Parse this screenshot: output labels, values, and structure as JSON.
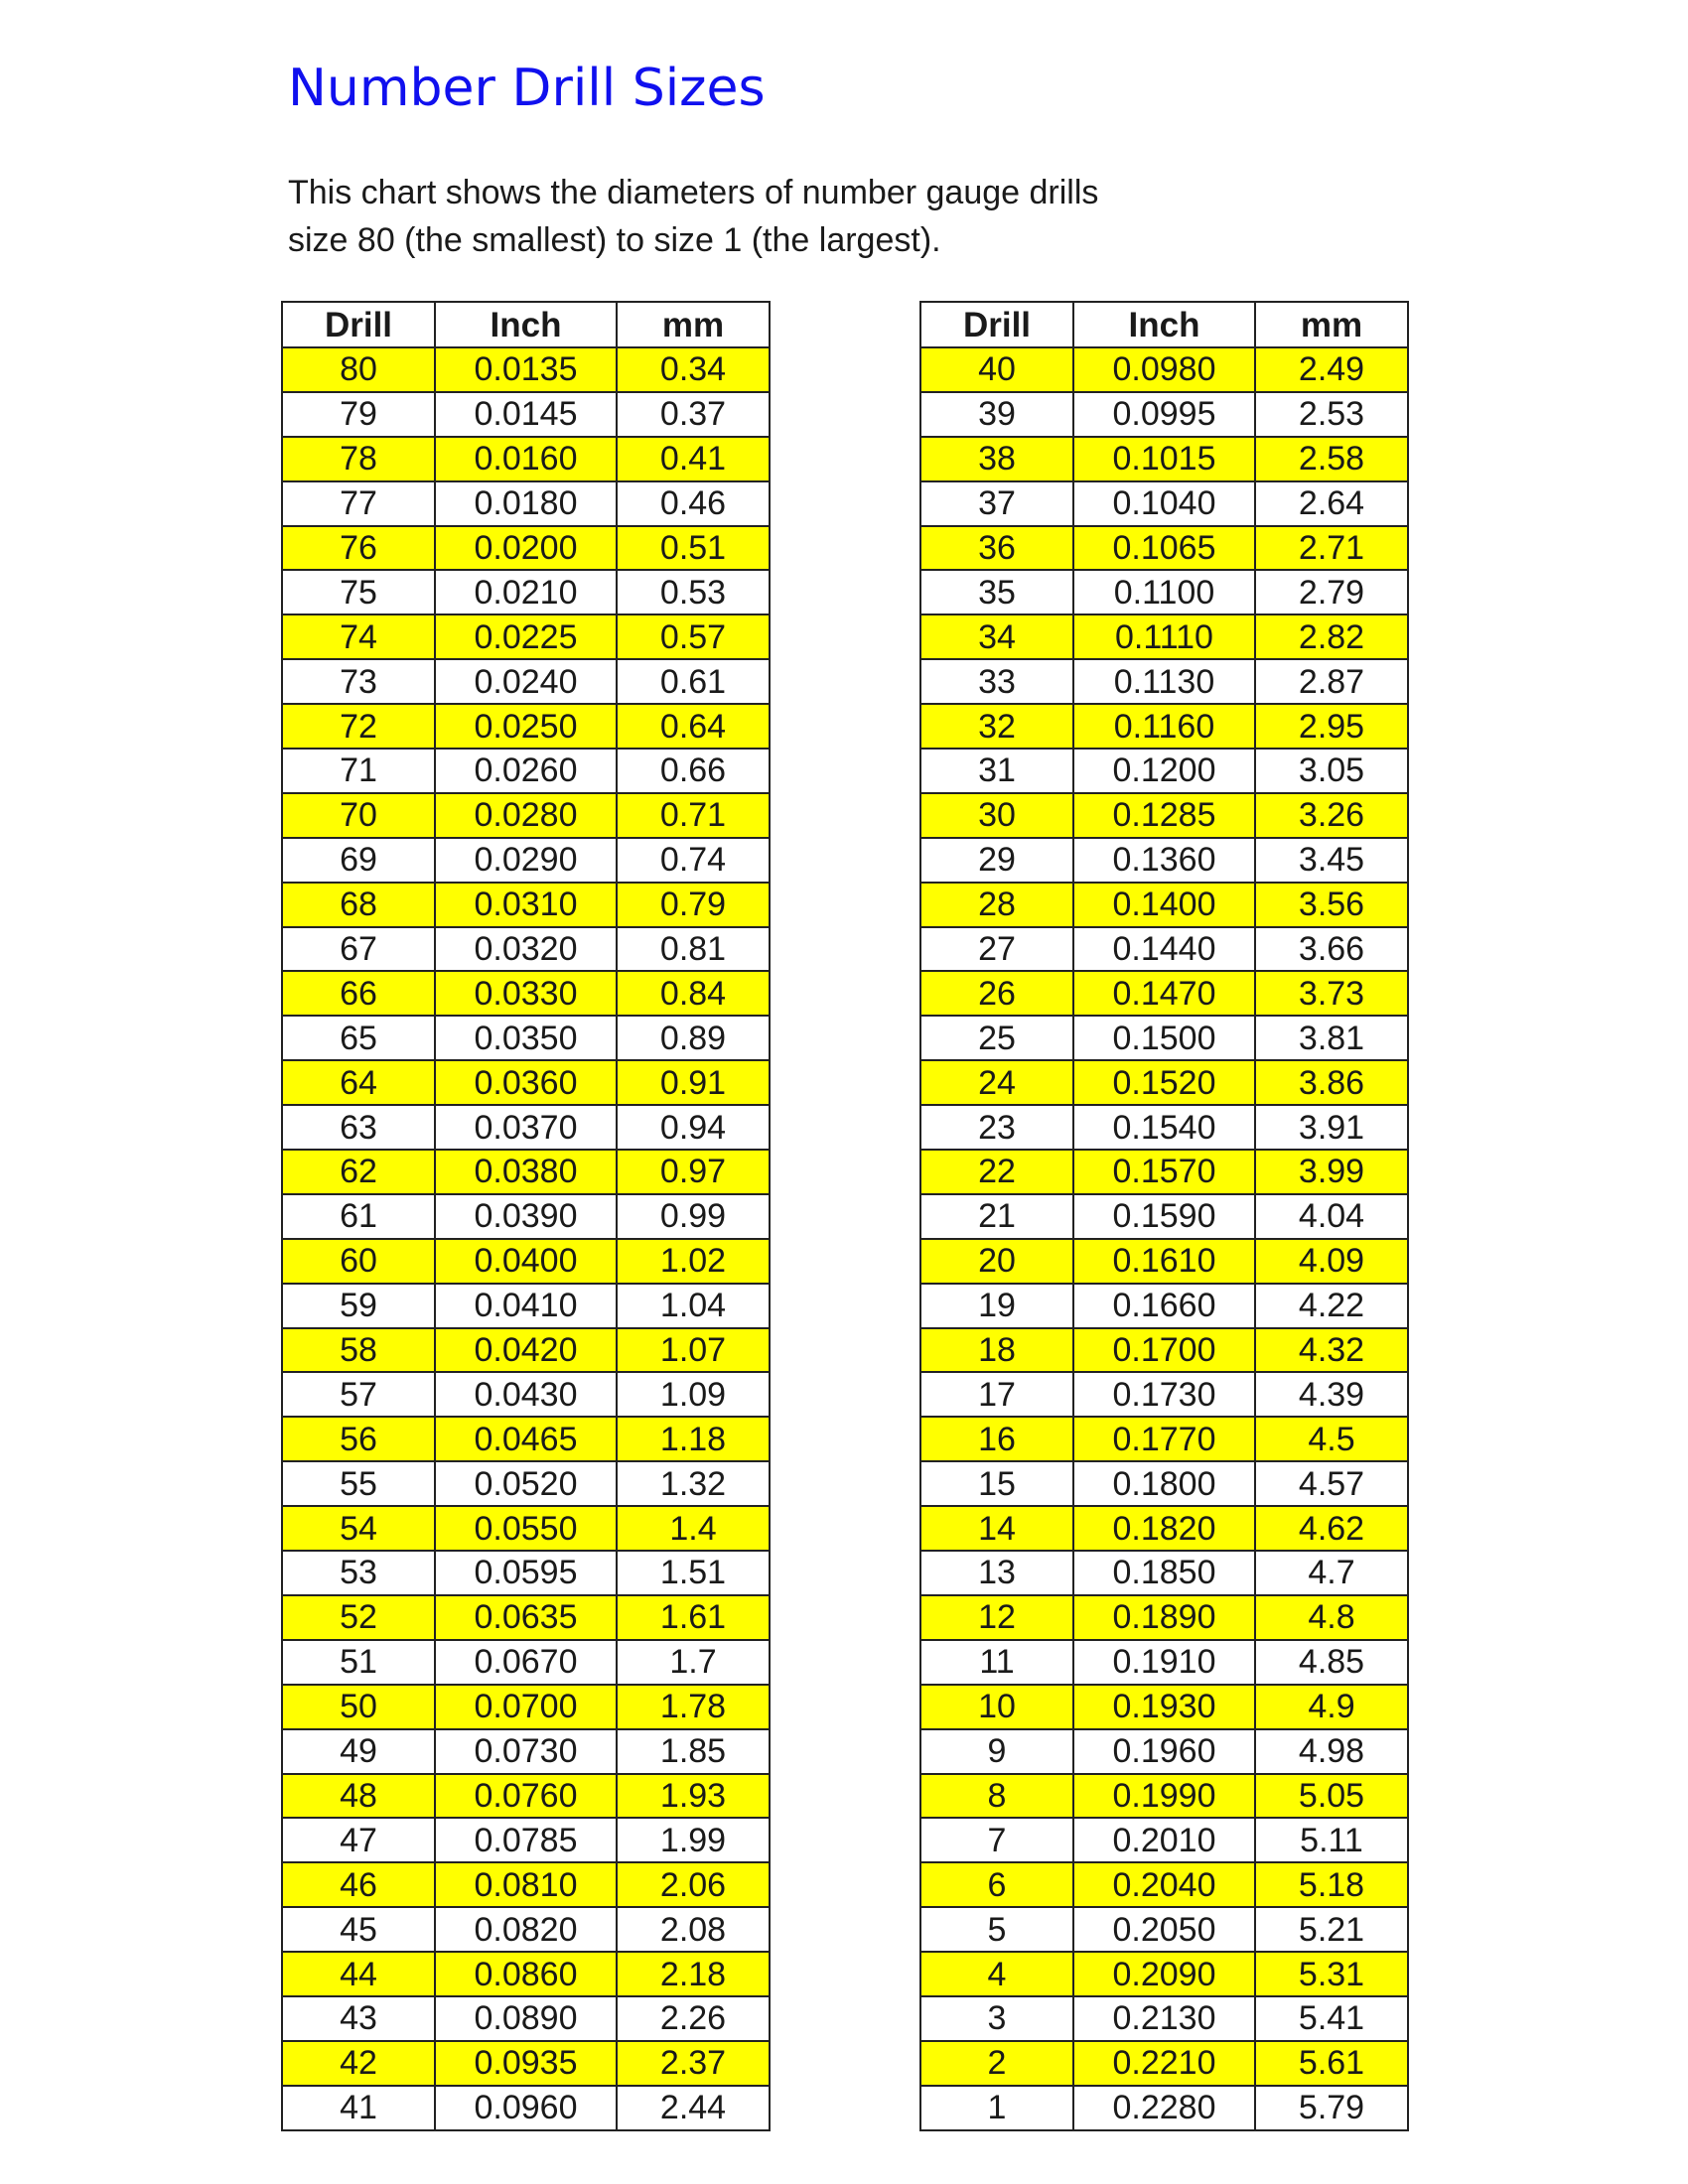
{
  "title": "Number Drill Sizes",
  "intro": {
    "line1": "This chart shows the diameters of number gauge drills",
    "line2": "size 80 (the smallest) to size 1 (the largest)."
  },
  "colors": {
    "title": "#1010ee",
    "highlight": "#ffff00"
  },
  "columns": [
    "Drill",
    "Inch",
    "mm"
  ],
  "left_table": [
    [
      "80",
      "0.0135",
      "0.34"
    ],
    [
      "79",
      "0.0145",
      "0.37"
    ],
    [
      "78",
      "0.0160",
      "0.41"
    ],
    [
      "77",
      "0.0180",
      "0.46"
    ],
    [
      "76",
      "0.0200",
      "0.51"
    ],
    [
      "75",
      "0.0210",
      "0.53"
    ],
    [
      "74",
      "0.0225",
      "0.57"
    ],
    [
      "73",
      "0.0240",
      "0.61"
    ],
    [
      "72",
      "0.0250",
      "0.64"
    ],
    [
      "71",
      "0.0260",
      "0.66"
    ],
    [
      "70",
      "0.0280",
      "0.71"
    ],
    [
      "69",
      "0.0290",
      "0.74"
    ],
    [
      "68",
      "0.0310",
      "0.79"
    ],
    [
      "67",
      "0.0320",
      "0.81"
    ],
    [
      "66",
      "0.0330",
      "0.84"
    ],
    [
      "65",
      "0.0350",
      "0.89"
    ],
    [
      "64",
      "0.0360",
      "0.91"
    ],
    [
      "63",
      "0.0370",
      "0.94"
    ],
    [
      "62",
      "0.0380",
      "0.97"
    ],
    [
      "61",
      "0.0390",
      "0.99"
    ],
    [
      "60",
      "0.0400",
      "1.02"
    ],
    [
      "59",
      "0.0410",
      "1.04"
    ],
    [
      "58",
      "0.0420",
      "1.07"
    ],
    [
      "57",
      "0.0430",
      "1.09"
    ],
    [
      "56",
      "0.0465",
      "1.18"
    ],
    [
      "55",
      "0.0520",
      "1.32"
    ],
    [
      "54",
      "0.0550",
      "1.4"
    ],
    [
      "53",
      "0.0595",
      "1.51"
    ],
    [
      "52",
      "0.0635",
      "1.61"
    ],
    [
      "51",
      "0.0670",
      "1.7"
    ],
    [
      "50",
      "0.0700",
      "1.78"
    ],
    [
      "49",
      "0.0730",
      "1.85"
    ],
    [
      "48",
      "0.0760",
      "1.93"
    ],
    [
      "47",
      "0.0785",
      "1.99"
    ],
    [
      "46",
      "0.0810",
      "2.06"
    ],
    [
      "45",
      "0.0820",
      "2.08"
    ],
    [
      "44",
      "0.0860",
      "2.18"
    ],
    [
      "43",
      "0.0890",
      "2.26"
    ],
    [
      "42",
      "0.0935",
      "2.37"
    ],
    [
      "41",
      "0.0960",
      "2.44"
    ]
  ],
  "right_table": [
    [
      "40",
      "0.0980",
      "2.49"
    ],
    [
      "39",
      "0.0995",
      "2.53"
    ],
    [
      "38",
      "0.1015",
      "2.58"
    ],
    [
      "37",
      "0.1040",
      "2.64"
    ],
    [
      "36",
      "0.1065",
      "2.71"
    ],
    [
      "35",
      "0.1100",
      "2.79"
    ],
    [
      "34",
      "0.1110",
      "2.82"
    ],
    [
      "33",
      "0.1130",
      "2.87"
    ],
    [
      "32",
      "0.1160",
      "2.95"
    ],
    [
      "31",
      "0.1200",
      "3.05"
    ],
    [
      "30",
      "0.1285",
      "3.26"
    ],
    [
      "29",
      "0.1360",
      "3.45"
    ],
    [
      "28",
      "0.1400",
      "3.56"
    ],
    [
      "27",
      "0.1440",
      "3.66"
    ],
    [
      "26",
      "0.1470",
      "3.73"
    ],
    [
      "25",
      "0.1500",
      "3.81"
    ],
    [
      "24",
      "0.1520",
      "3.86"
    ],
    [
      "23",
      "0.1540",
      "3.91"
    ],
    [
      "22",
      "0.1570",
      "3.99"
    ],
    [
      "21",
      "0.1590",
      "4.04"
    ],
    [
      "20",
      "0.1610",
      "4.09"
    ],
    [
      "19",
      "0.1660",
      "4.22"
    ],
    [
      "18",
      "0.1700",
      "4.32"
    ],
    [
      "17",
      "0.1730",
      "4.39"
    ],
    [
      "16",
      "0.1770",
      "4.5"
    ],
    [
      "15",
      "0.1800",
      "4.57"
    ],
    [
      "14",
      "0.1820",
      "4.62"
    ],
    [
      "13",
      "0.1850",
      "4.7"
    ],
    [
      "12",
      "0.1890",
      "4.8"
    ],
    [
      "11",
      "0.1910",
      "4.85"
    ],
    [
      "10",
      "0.1930",
      "4.9"
    ],
    [
      "9",
      "0.1960",
      "4.98"
    ],
    [
      "8",
      "0.1990",
      "5.05"
    ],
    [
      "7",
      "0.2010",
      "5.11"
    ],
    [
      "6",
      "0.2040",
      "5.18"
    ],
    [
      "5",
      "0.2050",
      "5.21"
    ],
    [
      "4",
      "0.2090",
      "5.31"
    ],
    [
      "3",
      "0.2130",
      "5.41"
    ],
    [
      "2",
      "0.2210",
      "5.61"
    ],
    [
      "1",
      "0.2280",
      "5.79"
    ]
  ]
}
